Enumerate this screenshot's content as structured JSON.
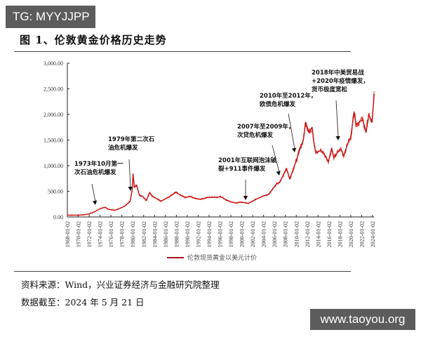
{
  "badge": {
    "text": "TG: MYYJJPP"
  },
  "figure": {
    "title": "图 1、伦敦黄金价格历史走势"
  },
  "source": {
    "text": "资料来源：Wind，兴业证券经济与金融研究院整理"
  },
  "cutoff": {
    "text": "数据截至：2024 年 5 月 21 日"
  },
  "watermark": {
    "text": "www.taoyou.org"
  },
  "legend": {
    "label": "伦敦现货黄金以美元计价",
    "color": "#c00000"
  },
  "annotations": [
    {
      "line1": "1973年10月第一",
      "line2": "次石油危机爆发"
    },
    {
      "line1": "1979年第二次石",
      "line2": "油危机爆发"
    },
    {
      "line1": "2001年互联网泡沫破",
      "line2": "裂+911事件爆发"
    },
    {
      "line1": "2007年至2009年，",
      "line2": "次贷危机爆发"
    },
    {
      "line1": "2010年至2012年，",
      "line2": "欧债危机爆发"
    },
    {
      "line1": "2018年中美贸易战",
      "line2": "+2020年疫情爆发，",
      "line3": "货币极度宽松"
    }
  ],
  "yticks": [
    "3,000.00",
    "2,500.00",
    "2,000.00",
    "1,500.00",
    "1,000.00",
    "500.00",
    "0.00"
  ],
  "xticks": [
    "1968-01-02",
    "1970-01-02",
    "1972-01-02",
    "1974-01-02",
    "1976-01-02",
    "1978-01-02",
    "1980-01-02",
    "1982-01-02",
    "1984-01-02",
    "1986-01-02",
    "1988-01-02",
    "1990-01-02",
    "1992-01-02",
    "1994-01-02",
    "1996-01-02",
    "1998-01-02",
    "2000-01-02",
    "2002-01-02",
    "2004-01-02",
    "2006-01-02",
    "2008-01-02",
    "2010-01-02",
    "2012-01-02",
    "2014-01-02",
    "2016-01-02",
    "2018-01-02",
    "2020-01-02",
    "2022-01-02",
    "2024-01-02"
  ],
  "chart_data": {
    "type": "line",
    "title": "图 1、伦敦黄金价格历史走势",
    "xlabel": "",
    "ylabel": "",
    "ylim": [
      0,
      3000
    ],
    "grid": false,
    "legend_position": "bottom",
    "series": [
      {
        "name": "伦敦现货黄金以美元计价",
        "x": [
          1968,
          1970,
          1971,
          1972,
          1973,
          1974,
          1974.9,
          1975.5,
          1976.7,
          1977.5,
          1978.5,
          1979.5,
          1979.9,
          1980.05,
          1980.3,
          1980.7,
          1981.2,
          1981.8,
          1982.5,
          1983.1,
          1983.6,
          1984.5,
          1985.2,
          1986.5,
          1987.9,
          1988.8,
          1989.6,
          1990.5,
          1991.5,
          1992.5,
          1993.6,
          1994.5,
          1995.5,
          1996.1,
          1997.0,
          1998.0,
          1999.0,
          1999.8,
          2001.2,
          2002.0,
          2003.0,
          2004.0,
          2005.0,
          2006.4,
          2007.0,
          2008.2,
          2008.8,
          2009.5,
          2010.0,
          2010.8,
          2011.3,
          2011.7,
          2012.3,
          2012.9,
          2013.3,
          2013.6,
          2014.5,
          2015.1,
          2015.9,
          2016.5,
          2016.9,
          2017.5,
          2018.2,
          2018.7,
          2019.5,
          2020.0,
          2020.6,
          2021.0,
          2021.5,
          2022.2,
          2022.8,
          2023.3,
          2023.9,
          2024.3
        ],
        "values": [
          35,
          36,
          42,
          60,
          100,
          160,
          190,
          150,
          130,
          160,
          210,
          300,
          520,
          840,
          580,
          620,
          430,
          400,
          320,
          480,
          400,
          350,
          310,
          380,
          480,
          420,
          380,
          400,
          360,
          345,
          380,
          385,
          385,
          400,
          340,
          295,
          270,
          290,
          265,
          310,
          365,
          410,
          445,
          650,
          680,
          950,
          740,
          950,
          1100,
          1370,
          1500,
          1850,
          1650,
          1750,
          1400,
          1250,
          1300,
          1230,
          1080,
          1340,
          1150,
          1250,
          1330,
          1190,
          1450,
          1550,
          2050,
          1800,
          1850,
          1900,
          1650,
          2000,
          1850,
          2400
        ]
      }
    ],
    "annotations": [
      {
        "text": "1973年10月第一次石油危机爆发",
        "x": 1973.8,
        "y": 110
      },
      {
        "text": "1979年第二次石油危机爆发",
        "x": 1979.4,
        "y": 320
      },
      {
        "text": "2001年互联网泡沫破裂+911事件爆发",
        "x": 2001.5,
        "y": 270
      },
      {
        "text": "2007年至2009年，次贷危机爆发",
        "x": 2007.5,
        "y": 680
      },
      {
        "text": "2010年至2012年，欧债危机爆发",
        "x": 2010.2,
        "y": 1150
      },
      {
        "text": "2018年中美贸易战+2020年疫情爆发，货币极度宽松",
        "x": 2018.3,
        "y": 1370
      }
    ]
  }
}
